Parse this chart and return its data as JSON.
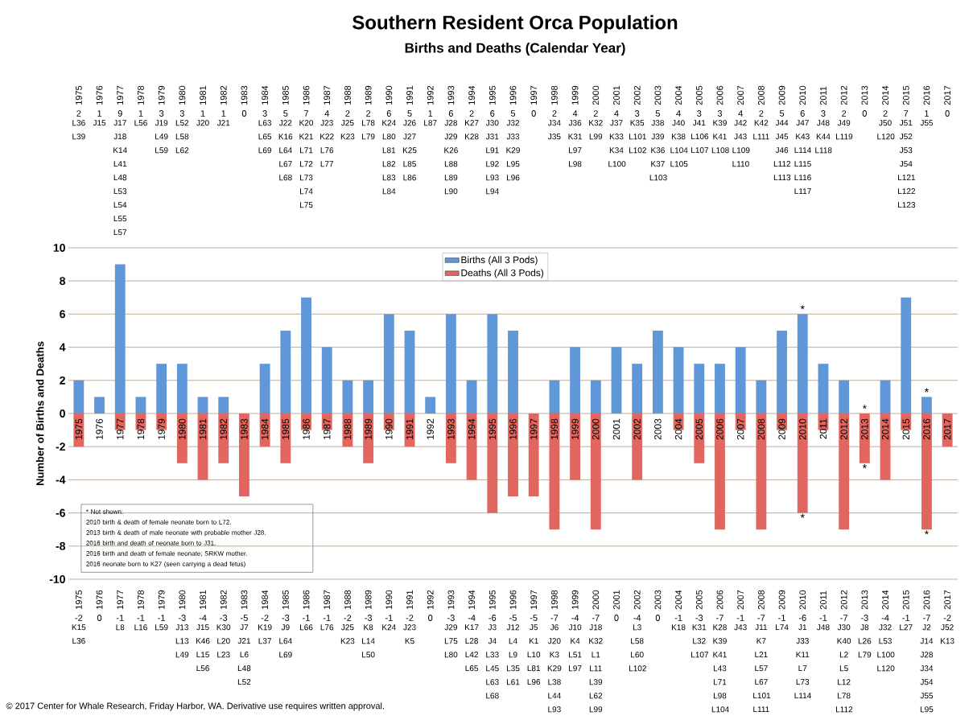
{
  "chart_data": {
    "type": "bar",
    "title": "Southern Resident Orca Population",
    "subtitle": "Births and Deaths (Calendar Year)",
    "ylabel": "Number of Births and Deaths",
    "categories": [
      "1975",
      "1976",
      "1977",
      "1978",
      "1979",
      "1980",
      "1981",
      "1982",
      "1983",
      "1984",
      "1985",
      "1986",
      "1987",
      "1988",
      "1989",
      "1990",
      "1991",
      "1992",
      "1993",
      "1994",
      "1995",
      "1996",
      "1997",
      "1998",
      "1999",
      "2000",
      "2001",
      "2002",
      "2003",
      "2004",
      "2005",
      "2006",
      "2007",
      "2008",
      "2009",
      "2010",
      "2011",
      "2012",
      "2013",
      "2014",
      "2015",
      "2016",
      "2017"
    ],
    "series": [
      {
        "name": "Births (All 3 Pods)",
        "color": "#5f97d8",
        "values": [
          2,
          1,
          9,
          1,
          3,
          3,
          1,
          1,
          0,
          3,
          5,
          7,
          4,
          2,
          2,
          6,
          5,
          1,
          6,
          2,
          6,
          5,
          0,
          2,
          4,
          2,
          4,
          3,
          5,
          4,
          3,
          3,
          4,
          2,
          5,
          6,
          3,
          2,
          0,
          2,
          7,
          1,
          0
        ]
      },
      {
        "name": "Deaths (All 3 Pods)",
        "color": "#e0665f",
        "values": [
          -2,
          0,
          -1,
          -1,
          -1,
          -3,
          -4,
          -3,
          -5,
          -2,
          -3,
          -1,
          -1,
          -2,
          -3,
          -1,
          -2,
          0,
          -3,
          -4,
          -6,
          -5,
          -5,
          -7,
          -4,
          -7,
          0,
          -4,
          0,
          -1,
          -3,
          -7,
          -1,
          -7,
          -1,
          -6,
          -1,
          -7,
          -3,
          -4,
          -1,
          -7,
          -2
        ]
      }
    ],
    "stacked": true,
    "data_labels": true,
    "ylim": [
      -10,
      10
    ],
    "yticks": [
      -10,
      -8,
      -6,
      -4,
      -2,
      0,
      2,
      4,
      6,
      8,
      10
    ],
    "grid": "y",
    "legend": "top",
    "annotations": [
      "L36 L39",
      "J15",
      "J17 J18 K14 L41 L48 L53 L54 L55 L57",
      "L56",
      "J19 L49 L59",
      "L52 L58 L62",
      "J20",
      "J21",
      "L63 L65 L69",
      "J22 K16 L64 L67 L68",
      "K20 K21 L71 L72 L73 L74 L75",
      "J23 K22 L76 L77",
      "J25 K23",
      "L78 L79",
      "K24 L80 L81 L82 L83 L84",
      "J26 J27 K25 L85 L86",
      "L87",
      "J28 J29 K26 L88 L89 L90",
      "K27 K28",
      "J30 J31 L91 L92 L93 L94",
      "J32 J33 K29 L95 L96",
      "J34 J35",
      "J36 K31 L97 L98",
      "K32 L99",
      "J37 K33 K34 L100",
      "K35 L101 L102",
      "J38 J39 K36 K37 L103",
      "J40 K38 L104 L105",
      "J41 L106 L107",
      "K39 K41 L108",
      "J42 J43 L109 L110",
      "K42 L111",
      "J44 J45 J46 L112 L113",
      "J47 K43 L114 L115 L116 L117",
      "J48 K44 L118",
      "J49 L119",
      "J50 L120",
      "J51 J52 J53 J54 L121 L122 L123",
      "J55",
      "K15 L36",
      "L8",
      "L16",
      "L59",
      "J13 L13 L49",
      "J15 K46 L15 L56",
      "K30 L20 L23",
      "J7 J21 L6 L48 L52",
      "K19 L37",
      "J9 L64 L69",
      "L66",
      "L76",
      "J25 K23",
      "K8 L14 L50",
      "K24",
      "J23 K5",
      "J29 L75 L80",
      "K17 L28 L42 L65",
      "J3 J4 L33 L45 L63 L68",
      "J12 L4 L9 L35 L61",
      "J5 K1 L10 L81 L96",
      "J6 J20 K3 K29 L38 L44 L93",
      "J10 K4 L51 L97",
      "J18 K32 L1 L11 L39 L62 L99",
      "L3 L58 L60 L102",
      "K18",
      "K31 L32 L107",
      "K28 K39 K41 L43 L71 L98 L104",
      "J43",
      "J11 K7 L21 L57 L67 L101 L111",
      "L74",
      "J1 J33 K11 L7 L73 L114",
      "J48",
      "J30 K40 L2 L5 L12 L78 L112",
      "J8 L26 L79",
      "J32 L53 L100 L120",
      "L27",
      "J2 J14 J28 J34 J54 J55 L95",
      "J52 K13",
      "* Not shown:",
      "2010 birth & death of female neonate born to L72.",
      "2013 birth & death of male neonate with probable mother J28.",
      "2016 birth and death of neonate born to J31.",
      "2016 birth and death of female neonate; SRKW mother.",
      "2016 neonate born to K27 (seen carrying a dead fetus)",
      "© 2017 Center for Whale Research, Friday Harbor, WA.  Derivative use requires written approval.",
      {
        "text": "*",
        "x": "2010",
        "y": 6
      },
      {
        "text": "*",
        "x": "2010",
        "y": -6
      },
      {
        "text": "*",
        "x": "2013",
        "y": 0
      },
      {
        "text": "*",
        "x": "2013",
        "y": -3
      },
      {
        "text": "*",
        "x": "2016",
        "y": 1
      },
      {
        "text": "*",
        "x": "2016",
        "y": -7
      }
    ]
  }
}
